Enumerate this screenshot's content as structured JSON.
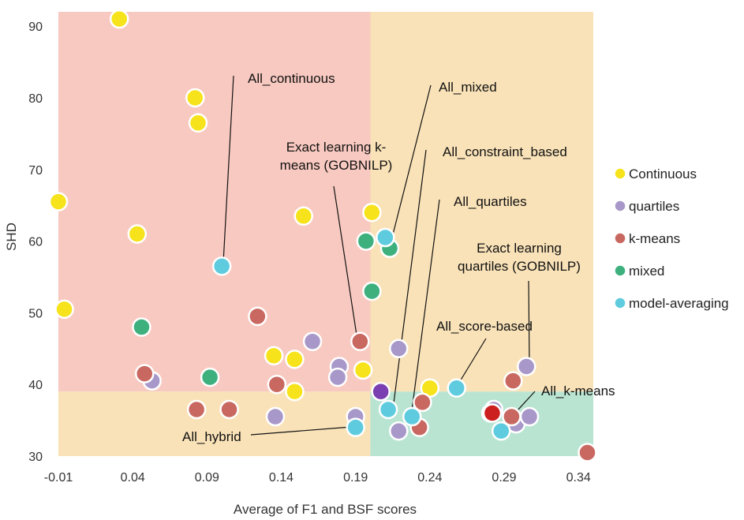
{
  "chart_data": {
    "type": "scatter",
    "title": "",
    "xlabel": "Average of F1 and BSF scores",
    "ylabel": "SHD",
    "xlim": [
      -0.01,
      0.35
    ],
    "ylim": [
      30,
      92
    ],
    "xticks": [
      "-0.01",
      "0.04",
      "0.09",
      "0.14",
      "0.19",
      "0.24",
      "0.29",
      "0.34"
    ],
    "yticks": [
      "30",
      "40",
      "50",
      "60",
      "70",
      "80",
      "90"
    ],
    "regions": [
      {
        "name": "red-region",
        "x": [
          -0.01,
          0.2
        ],
        "y": [
          39,
          92
        ],
        "color": "#f8c9c0"
      },
      {
        "name": "top-right-region",
        "x": [
          0.2,
          0.35
        ],
        "y": [
          39,
          92
        ],
        "color": "#f9e2b8"
      },
      {
        "name": "bottom-left-region",
        "x": [
          -0.01,
          0.2
        ],
        "y": [
          30,
          39
        ],
        "color": "#f9e2b8"
      },
      {
        "name": "green-region",
        "x": [
          0.2,
          0.35
        ],
        "y": [
          30,
          39
        ],
        "color": "#b9e4d2"
      }
    ],
    "series": [
      {
        "name": "Continuous",
        "color": "#f7e31c",
        "points": [
          [
            0.031,
            91
          ],
          [
            -0.01,
            65.5
          ],
          [
            0.082,
            80
          ],
          [
            0.084,
            76.5
          ],
          [
            0.043,
            61
          ],
          [
            -0.006,
            50.5
          ],
          [
            0.155,
            63.5
          ],
          [
            0.201,
            64
          ],
          [
            0.135,
            44
          ],
          [
            0.149,
            43.5
          ],
          [
            0.195,
            42
          ],
          [
            0.149,
            39
          ],
          [
            0.24,
            39.5
          ]
        ]
      },
      {
        "name": "quartiles",
        "color": "#a898c9",
        "points": [
          [
            0.161,
            46
          ],
          [
            0.179,
            42.5
          ],
          [
            0.178,
            41
          ],
          [
            0.053,
            40.5
          ],
          [
            0.136,
            35.5
          ],
          [
            0.19,
            35.5
          ],
          [
            0.219,
            45
          ],
          [
            0.219,
            33.5
          ],
          [
            0.298,
            34.5
          ],
          [
            0.305,
            42.5
          ],
          [
            0.307,
            35.5
          ],
          [
            0.283,
            36.5
          ]
        ]
      },
      {
        "name": "k-means",
        "color": "#c86860",
        "points": [
          [
            0.124,
            49.5
          ],
          [
            0.048,
            41.5
          ],
          [
            0.137,
            40
          ],
          [
            0.083,
            36.5
          ],
          [
            0.105,
            36.5
          ],
          [
            0.193,
            46
          ],
          [
            0.235,
            37.5
          ],
          [
            0.233,
            34
          ],
          [
            0.296,
            40.5
          ],
          [
            0.295,
            35.5
          ],
          [
            0.281,
            36
          ],
          [
            0.346,
            30.5
          ]
        ]
      },
      {
        "name": "mixed",
        "color": "#3db07e",
        "points": [
          [
            0.046,
            48
          ],
          [
            0.092,
            41
          ],
          [
            0.197,
            60
          ],
          [
            0.201,
            53
          ],
          [
            0.213,
            59
          ]
        ]
      },
      {
        "name": "model-averaging",
        "color": "#5fcbde",
        "points": [
          [
            0.1,
            56.5
          ],
          [
            0.21,
            60.5
          ],
          [
            0.19,
            34
          ],
          [
            0.212,
            36.5
          ],
          [
            0.228,
            35.5
          ],
          [
            0.258,
            39.5
          ],
          [
            0.288,
            33.5
          ]
        ]
      },
      {
        "name": "highlight",
        "color": "#7a3fb0",
        "points": [
          [
            0.207,
            39
          ]
        ]
      },
      {
        "name": "highlight-red",
        "color": "#cc1f1f",
        "points": [
          [
            0.282,
            36
          ]
        ]
      }
    ],
    "legend": {
      "placement": "right",
      "entries": [
        {
          "label": "Continuous",
          "color": "#f7e31c"
        },
        {
          "label": "quartiles",
          "color": "#a898c9"
        },
        {
          "label": "k-means",
          "color": "#c86860"
        },
        {
          "label": "mixed",
          "color": "#3db07e"
        },
        {
          "label": "model-averaging",
          "color": "#5fcbde"
        }
      ]
    },
    "annotations": [
      {
        "name": "all-continuous",
        "lines": [
          "All_continuous"
        ],
        "target": [
          0.1,
          56.5
        ]
      },
      {
        "name": "all-mixed",
        "lines": [
          "All_mixed"
        ],
        "target": [
          0.21,
          60.5
        ]
      },
      {
        "name": "exact-kmeans",
        "lines": [
          "Exact learning k-",
          "means (GOBNILP)"
        ],
        "target": [
          0.193,
          46
        ]
      },
      {
        "name": "all-constraint",
        "lines": [
          "All_constraint_based"
        ],
        "target": [
          0.212,
          36.5
        ]
      },
      {
        "name": "all-quartiles",
        "lines": [
          "All_quartiles"
        ],
        "target": [
          0.228,
          35.5
        ]
      },
      {
        "name": "exact-quartiles",
        "lines": [
          "Exact learning",
          "quartiles (GOBNILP)"
        ],
        "target": [
          0.305,
          42.5
        ]
      },
      {
        "name": "all-score",
        "lines": [
          "All_score-based"
        ],
        "target": [
          0.258,
          39.5
        ]
      },
      {
        "name": "all-kmeans",
        "lines": [
          "All_k-means"
        ],
        "target": [
          0.288,
          33.5
        ]
      },
      {
        "name": "all-hybrid",
        "lines": [
          "All_hybrid"
        ],
        "target": [
          0.19,
          34
        ]
      }
    ]
  }
}
